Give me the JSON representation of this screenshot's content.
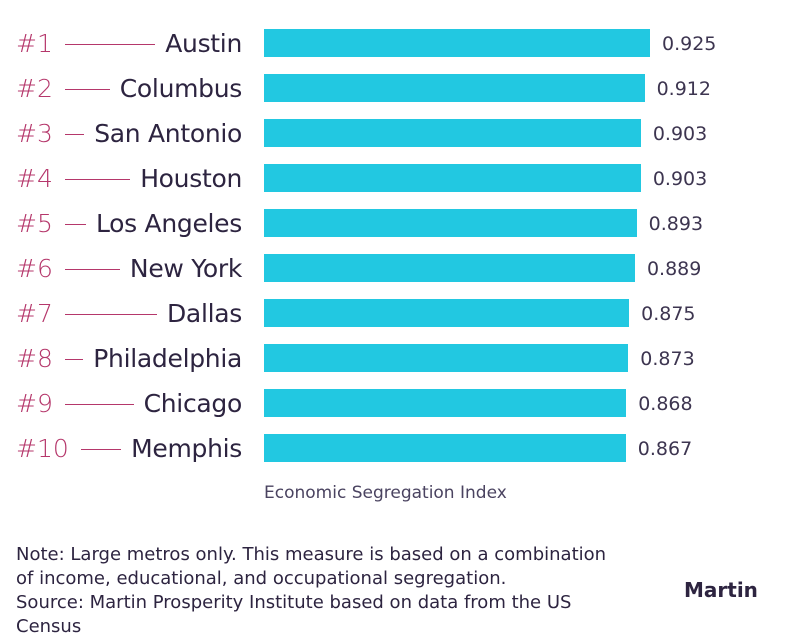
{
  "chart_data": {
    "type": "bar",
    "orientation": "horizontal",
    "categories": [
      "Austin",
      "Columbus",
      "San Antonio",
      "Houston",
      "Los Angeles",
      "New York",
      "Dallas",
      "Philadelphia",
      "Chicago",
      "Memphis"
    ],
    "ranks": [
      "#1",
      "#2",
      "#3",
      "#4",
      "#5",
      "#6",
      "#7",
      "#8",
      "#9",
      "#10"
    ],
    "values": [
      0.925,
      0.912,
      0.903,
      0.903,
      0.893,
      0.889,
      0.875,
      0.873,
      0.868,
      0.867
    ],
    "value_labels": [
      "0.925",
      "0.912",
      "0.903",
      "0.903",
      "0.893",
      "0.889",
      "0.875",
      "0.873",
      "0.868",
      "0.867"
    ],
    "xlabel": "Economic Segregation Index",
    "xlim": [
      0,
      0.925
    ],
    "grid": false,
    "colors": {
      "bar": "#22c8e1",
      "rank": "#b5376b",
      "text": "#2d2440"
    }
  },
  "note": {
    "line1": "Note: Large metros only. This measure is based on a combination",
    "line2": "of income, educational, and occupational segregation.",
    "line3": "Source: Martin Prosperity Institute based on data from the US Census"
  },
  "logo": "Martin"
}
